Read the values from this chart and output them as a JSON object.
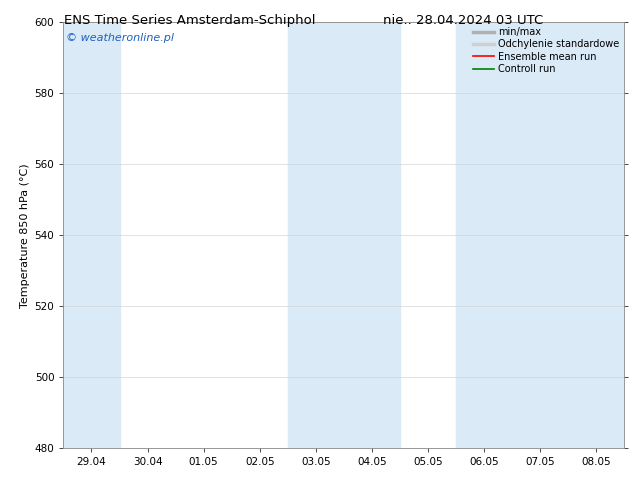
{
  "title_left": "ENS Time Series Amsterdam-Schiphol",
  "title_right": "nie.. 28.04.2024 03 UTC",
  "ylabel": "Temperature 850 hPa (°C)",
  "ylim": [
    480,
    600
  ],
  "yticks": [
    480,
    500,
    520,
    540,
    560,
    580,
    600
  ],
  "x_labels": [
    "29.04",
    "30.04",
    "01.05",
    "02.05",
    "03.05",
    "04.05",
    "05.05",
    "06.05",
    "07.05",
    "08.05"
  ],
  "x_positions": [
    0,
    1,
    2,
    3,
    4,
    5,
    6,
    7,
    8,
    9
  ],
  "xlim": [
    -0.5,
    9.5
  ],
  "watermark": "© weatheronline.pl",
  "watermark_color": "#2060C0",
  "bg_color": "#ffffff",
  "plot_bg_color": "#ffffff",
  "shaded_columns": [
    0,
    4,
    5,
    7,
    8,
    9
  ],
  "shaded_color": "#DAEAF7",
  "legend_entries": [
    {
      "label": "min/max",
      "color": "#b0b0b0",
      "lw": 2.5
    },
    {
      "label": "Odchylenie standardowe",
      "color": "#d0d0d0",
      "lw": 2.5
    },
    {
      "label": "Ensemble mean run",
      "color": "#ff0000",
      "lw": 1.2
    },
    {
      "label": "Controll run",
      "color": "#008000",
      "lw": 1.2
    }
  ],
  "title_fontsize": 9.5,
  "ylabel_fontsize": 8,
  "tick_fontsize": 7.5,
  "legend_fontsize": 7,
  "watermark_fontsize": 8
}
